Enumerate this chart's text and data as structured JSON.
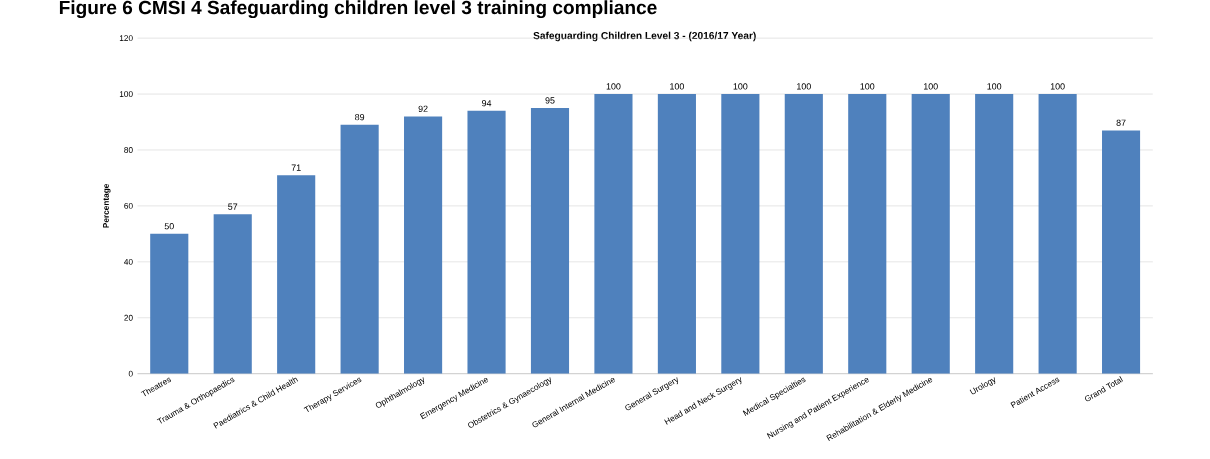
{
  "chart_data": {
    "type": "bar",
    "title": "Figure 6 CMSI 4 Safeguarding children level 3 training compliance",
    "subtitle": "Safeguarding Children Level 3 - (2016/17 Year)",
    "ylabel": "Percentage",
    "categories": [
      "Theatres",
      "Trauma & Orthopaedics",
      "Paediatrics & Child Health",
      "Therapy Services",
      "Ophthalmology",
      "Emergency Medicine",
      "Obstetrics & Gynaecology",
      "General Internal Medicine",
      "General Surgery",
      "Head and Neck Surgery",
      "Medical Specialties",
      "Nursing and Patient Experience",
      "Rehabilitation & Elderly Medicine",
      "Urology",
      "Patient Access",
      "Grand Total"
    ],
    "values": [
      50,
      57,
      71,
      89,
      92,
      94,
      95,
      100,
      100,
      100,
      100,
      100,
      100,
      100,
      100,
      87
    ],
    "color": "#4f81bd",
    "ylim": [
      0,
      120
    ],
    "yticks": [
      0,
      20,
      40,
      60,
      80,
      100,
      120
    ],
    "grid": "y",
    "data_labels": true
  }
}
